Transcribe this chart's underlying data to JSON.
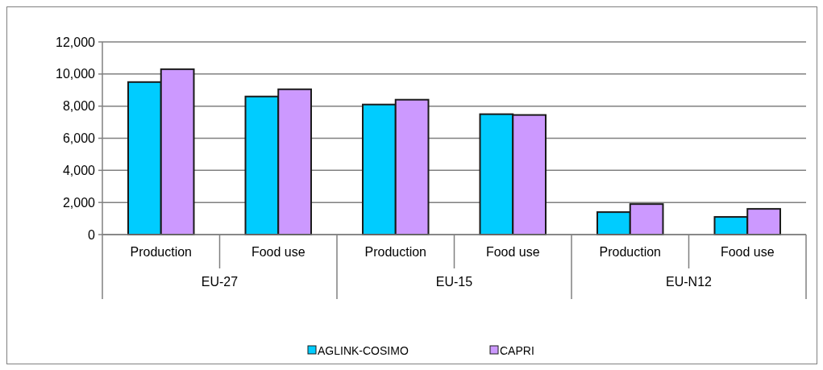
{
  "chart_data": {
    "type": "bar",
    "categories": [
      "Production",
      "Food use",
      "Production",
      "Food use",
      "Production",
      "Food use"
    ],
    "series": [
      {
        "name": "AGLINK-COSIMO",
        "color": "#00ccff",
        "values": [
          9500,
          8600,
          8100,
          7500,
          1400,
          1100
        ]
      },
      {
        "name": "CAPRI",
        "color": "#cc99ff",
        "values": [
          10300,
          9050,
          8400,
          7450,
          1900,
          1600
        ]
      }
    ],
    "annotations": [
      "EU-27",
      "EU-15",
      "EU-N12"
    ],
    "ylim": [
      0,
      12000
    ],
    "yticks": [
      {
        "value": 0,
        "label": "0"
      },
      {
        "value": 2000,
        "label": "2,000"
      },
      {
        "value": 4000,
        "label": "4,000"
      },
      {
        "value": 6000,
        "label": "6,000"
      },
      {
        "value": 8000,
        "label": "8,000"
      },
      {
        "value": 10000,
        "label": "10,000"
      },
      {
        "value": 12000,
        "label": "12,000"
      }
    ],
    "grid": "y",
    "legend": "bottom"
  }
}
